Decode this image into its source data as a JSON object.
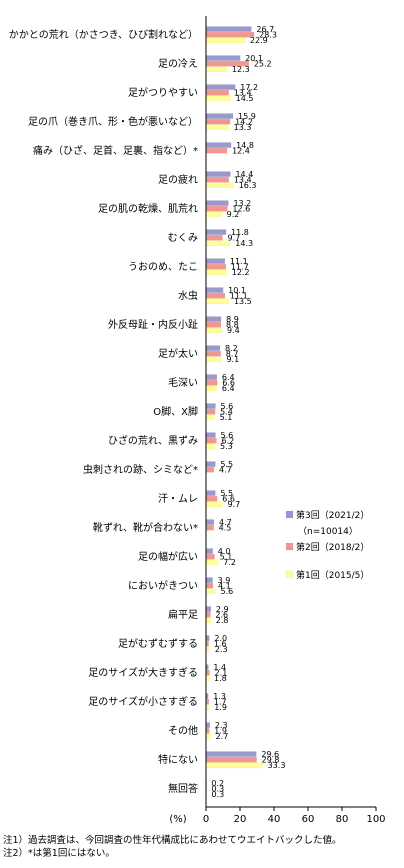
{
  "chart_data": {
    "type": "bar",
    "orientation": "horizontal",
    "categories": [
      "かかとの荒れ（かさつき、ひび割れなど）",
      "足の冷え",
      "足がつりやすい",
      "足の爪（巻き爪、形・色が悪いなど）",
      "痛み（ひざ、足首、足裏、指など）*",
      "足の疲れ",
      "足の肌の乾燥、肌荒れ",
      "むくみ",
      "うおのめ、たこ",
      "水虫",
      "外反母趾・内反小趾",
      "足が太い",
      "毛深い",
      "O脚、X脚",
      "ひざの荒れ、黒ずみ",
      "虫刺されの跡、シミなど*",
      "汗・ムレ",
      "靴ずれ、靴が合わない*",
      "足の幅が広い",
      "においがきつい",
      "扁平足",
      "足がむずむずする",
      "足のサイズが大きすぎる",
      "足のサイズが小さすぎる",
      "その他",
      "特にない",
      "無回答"
    ],
    "series": [
      {
        "name": "第3回（2021/2）",
        "color": "#9999cc",
        "values": [
          26.7,
          20.1,
          17.2,
          15.9,
          14.8,
          14.4,
          13.2,
          11.8,
          11.1,
          10.1,
          8.9,
          8.2,
          6.4,
          5.6,
          5.6,
          5.5,
          5.5,
          4.7,
          4.0,
          3.9,
          2.9,
          2.0,
          1.4,
          1.3,
          2.3,
          29.6,
          0.2
        ]
      },
      {
        "name": "第2回（2018/2）",
        "color": "#f2978f",
        "values": [
          28.3,
          25.2,
          13.4,
          14.2,
          12.4,
          13.4,
          12.6,
          9.7,
          11.7,
          11.1,
          8.8,
          8.7,
          6.6,
          5.4,
          6.2,
          4.7,
          6.6,
          4.5,
          5.1,
          4.1,
          2.6,
          1.6,
          2.1,
          1.7,
          1.9,
          29.8,
          0.3
        ]
      },
      {
        "name": "第1回（2015/5）",
        "color": "#ffff99",
        "values": [
          22.9,
          12.3,
          14.5,
          13.3,
          null,
          16.3,
          9.2,
          14.3,
          12.2,
          13.5,
          9.4,
          9.1,
          6.4,
          5.1,
          5.3,
          null,
          9.7,
          null,
          7.2,
          5.6,
          2.8,
          2.3,
          1.8,
          1.9,
          2.7,
          33.3,
          0.3
        ]
      }
    ],
    "value_labels": {
      "s0": [
        "26.7",
        "20.1",
        "17.2",
        "15.9",
        "14.8",
        "14.4",
        "13.2",
        "11.8",
        "11.1",
        "10.1",
        "8.9",
        "8.2",
        "6.4",
        "5.6",
        "5.6",
        "5.5",
        "5.5",
        "4.7",
        "4.0",
        "3.9",
        "2.9",
        "2.0",
        "1.4",
        "1.3",
        "2.3",
        "29.6",
        "0.2"
      ],
      "s1": [
        "28.3",
        "25.2",
        "13.4",
        "14.2",
        "12.4",
        "13.4",
        "12.6",
        "9.7",
        "11.7",
        "11.1",
        "8.8",
        "8.7",
        "6.6",
        "5.4",
        "6.2",
        "4.7",
        "6.6",
        "4.5",
        "5.1",
        "4.1",
        "2.6",
        "1.6",
        "2.1",
        "1.7",
        "1.9",
        "29.8",
        "0.3"
      ],
      "s2": [
        "22.9",
        "12.3",
        "14.5",
        "13.3",
        "",
        "16.3",
        "9.2",
        "14.3",
        "12.2",
        "13.5",
        "9.4",
        "9.1",
        "6.4",
        "5.1",
        "5.3",
        "",
        "9.7",
        "",
        "7.2",
        "5.6",
        "2.8",
        "2.3",
        "1.8",
        "1.9",
        "2.7",
        "33.3",
        "0.3"
      ]
    },
    "xlim": [
      0,
      100
    ],
    "x_ticks": [
      "0",
      "20",
      "40",
      "60",
      "80",
      "100"
    ],
    "x_unit_label": "(%)",
    "legend": {
      "placement": "right",
      "entries": [
        "第3回（2021/2）",
        "（n=10014）",
        "第2回（2018/2）",
        "第1回（2015/5）"
      ]
    },
    "grid": false
  },
  "notes": [
    "注1）過去調査は、今回調査の性年代構成比にあわせてウエイトバックした値。",
    "注2）*は第1回にはない。"
  ]
}
